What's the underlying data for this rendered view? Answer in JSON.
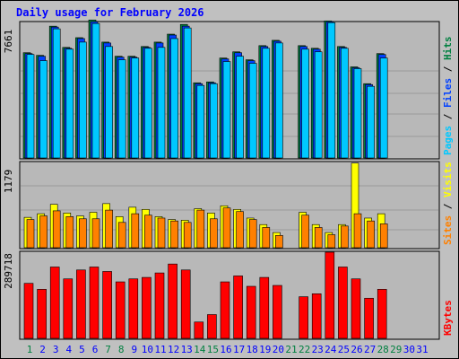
{
  "title": "Daily usage for February 2026",
  "colors": {
    "background": "#c0c0c0",
    "panel": "#b8b8b8",
    "hits": "#008040",
    "files": "#0040ff",
    "pages": "#00c8ff",
    "visits": "#ffff00",
    "sites": "#ff8000",
    "kbytes": "#ff0000",
    "weekend_day": "#008040",
    "weekday": "#0000ff"
  },
  "chart_data": [
    {
      "type": "bar",
      "title": "Daily usage for February 2026",
      "x": [
        "1",
        "2",
        "3",
        "4",
        "5",
        "6",
        "7",
        "8",
        "9",
        "10",
        "11",
        "12",
        "13",
        "14",
        "15",
        "16",
        "17",
        "18",
        "19",
        "20",
        "21",
        "22",
        "23",
        "24",
        "25",
        "26",
        "27",
        "28",
        "29",
        "30",
        "31"
      ],
      "weekend_days": [
        "1",
        "7",
        "8",
        "14",
        "15",
        "21",
        "22",
        "28",
        "29"
      ],
      "ymax_label": "7661",
      "ylim": [
        0,
        7661
      ],
      "axis_label_parts": [
        {
          "text": "Pages",
          "color": "#00c8ff"
        },
        {
          "text": " / ",
          "color": "#000000"
        },
        {
          "text": "Files",
          "color": "#0040ff"
        },
        {
          "text": " / ",
          "color": "#000000"
        },
        {
          "text": "Hits",
          "color": "#008040"
        }
      ],
      "series": [
        {
          "name": "Hits",
          "values": [
            5950,
            5800,
            7450,
            6250,
            6800,
            7800,
            6550,
            5750,
            5750,
            6300,
            6550,
            7000,
            7550,
            4250,
            4300,
            5650,
            6000,
            5550,
            6350,
            6650,
            null,
            6350,
            6200,
            7750,
            6300,
            5150,
            4200,
            5900,
            null,
            null,
            null
          ]
        },
        {
          "name": "Files",
          "values": [
            5900,
            5750,
            7400,
            6200,
            6750,
            7700,
            6500,
            5700,
            5700,
            6250,
            6500,
            6950,
            7450,
            4200,
            4250,
            5600,
            5950,
            5500,
            6300,
            6600,
            null,
            6300,
            6150,
            7700,
            6250,
            5100,
            4150,
            5850,
            null,
            null,
            null
          ]
        },
        {
          "name": "Pages",
          "values": [
            5850,
            5500,
            7300,
            6150,
            6550,
            7600,
            6300,
            5550,
            5650,
            6200,
            6250,
            6750,
            7350,
            4100,
            4200,
            5450,
            5750,
            5350,
            6200,
            6500,
            null,
            6150,
            6000,
            7650,
            6200,
            5050,
            4050,
            5650,
            null,
            null,
            null
          ]
        }
      ]
    },
    {
      "type": "bar",
      "ymax_label": "1179",
      "ylim": [
        0,
        1179
      ],
      "axis_label_parts": [
        {
          "text": "Sites",
          "color": "#ff8000"
        },
        {
          "text": " / ",
          "color": "#000000"
        },
        {
          "text": "Visits",
          "color": "#ffff00"
        }
      ],
      "series": [
        {
          "name": "Visits",
          "values": [
            420,
            470,
            600,
            480,
            440,
            490,
            610,
            430,
            560,
            530,
            430,
            390,
            380,
            540,
            480,
            580,
            530,
            410,
            320,
            210,
            null,
            490,
            320,
            210,
            320,
            1170,
            410,
            470,
            null,
            null,
            null
          ]
        },
        {
          "name": "Sites",
          "values": [
            390,
            440,
            510,
            430,
            400,
            400,
            520,
            350,
            470,
            450,
            410,
            370,
            350,
            520,
            400,
            550,
            500,
            390,
            280,
            170,
            null,
            450,
            280,
            180,
            300,
            470,
            370,
            330,
            null,
            null,
            null
          ]
        }
      ]
    },
    {
      "type": "bar",
      "ymax_label": "289718",
      "ylim": [
        0,
        289718
      ],
      "axis_label_parts": [
        {
          "text": "KBytes",
          "color": "#ff0000"
        }
      ],
      "series": [
        {
          "name": "KBytes",
          "values": [
            185000,
            165000,
            240000,
            200000,
            230000,
            240000,
            225000,
            190000,
            200000,
            205000,
            220000,
            250000,
            230000,
            55000,
            80000,
            190000,
            210000,
            175000,
            205000,
            178000,
            null,
            140000,
            150000,
            289718,
            240000,
            200000,
            135000,
            165000,
            null,
            null,
            null
          ]
        }
      ]
    }
  ]
}
